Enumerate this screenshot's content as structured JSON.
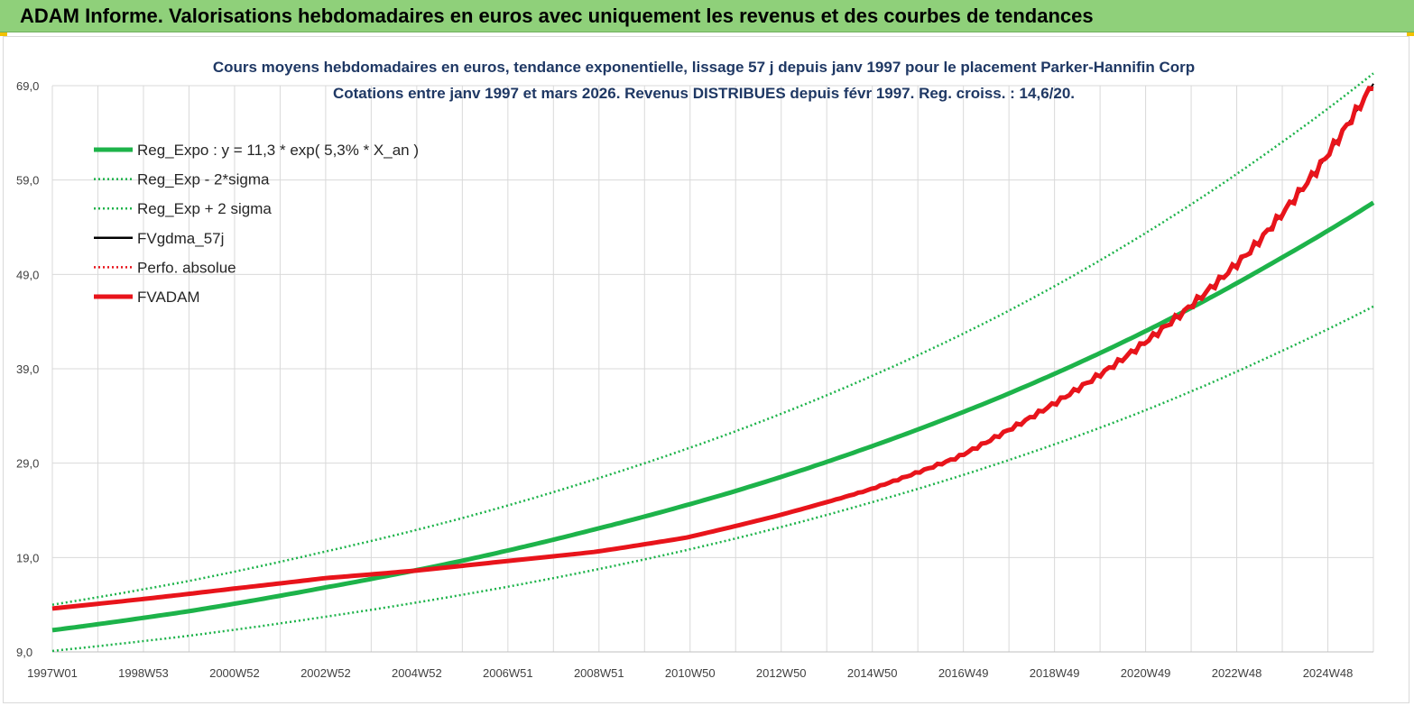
{
  "header": {
    "title": "ADAM Informe. Valorisations hebdomadaires en euros avec uniquement les revenus et des courbes de tendances"
  },
  "colors": {
    "green": "#1db34a",
    "black": "#000000",
    "red": "#e8141b",
    "grid": "#d9d9d9",
    "title": "#1f3864"
  },
  "chart_data": {
    "type": "line",
    "title": "Cours moyens hebdomadaires en euros, tendance exponentielle, lissage 57 j depuis janv 1997 pour le  placement Parker-Hannifin Corp",
    "subtitle": "Cotations entre janv 1997 et mars 2026. Revenus  DISTRIBUES depuis févr 1997. Reg.  croiss. : 14,6/20.",
    "xlabel": "",
    "ylabel": "",
    "x_ticks": [
      "1997W01",
      "1998W53",
      "2000W52",
      "2002W52",
      "2004W52",
      "2006W51",
      "2008W51",
      "2010W50",
      "2012W50",
      "2014W50",
      "2016W49",
      "2018W49",
      "2020W49",
      "2022W48",
      "2024W48"
    ],
    "xlim": [
      1997.0,
      2026.2
    ],
    "y_ticks": [
      "9,0",
      "19,0",
      "29,0",
      "39,0",
      "49,0",
      "59,0",
      "69,0"
    ],
    "ylim": [
      9,
      69
    ],
    "grid": true,
    "legend_position": "top-left",
    "series": [
      {
        "name": "Reg_Expo : y = 11,3 * exp( 5,3% *  X_an )",
        "style": "solid-thick",
        "color": "#1db34a",
        "x": [
          1997,
          2000,
          2003,
          2006,
          2009,
          2012,
          2015,
          2018,
          2021,
          2024,
          2026.2
        ],
        "values": [
          11.3,
          13.3,
          15.8,
          18.6,
          22.0,
          25.9,
          30.6,
          36.1,
          42.6,
          50.3,
          56.6
        ]
      },
      {
        "name": "Reg_Exp - 2*sigma",
        "style": "dotted",
        "color": "#1db34a",
        "x": [
          1997,
          2000,
          2003,
          2006,
          2009,
          2012,
          2015,
          2018,
          2021,
          2024,
          2026.2
        ],
        "values": [
          9.1,
          10.7,
          12.7,
          15.0,
          17.7,
          20.9,
          24.7,
          29.1,
          34.3,
          40.5,
          45.6
        ]
      },
      {
        "name": "Reg_Exp + 2 sigma",
        "style": "dotted",
        "color": "#1db34a",
        "x": [
          1997,
          2000,
          2003,
          2006,
          2009,
          2012,
          2015,
          2018,
          2021,
          2024,
          2026.2
        ],
        "values": [
          14.0,
          16.5,
          19.6,
          23.1,
          27.3,
          32.2,
          38.0,
          44.8,
          52.9,
          62.4,
          70.3
        ]
      },
      {
        "name": "FVgdma_57j",
        "style": "solid",
        "color": "#000000",
        "x": [
          1997,
          1999,
          2001,
          2003,
          2005,
          2007,
          2009,
          2011,
          2013,
          2015,
          2017,
          2019,
          2020.5,
          2022,
          2023.5,
          2025,
          2026.2
        ],
        "values": [
          13.6,
          14.6,
          15.7,
          16.8,
          17.6,
          18.6,
          19.6,
          21.1,
          23.4,
          26.1,
          29.6,
          34.9,
          39.5,
          45.0,
          51.6,
          60.4,
          69.2
        ]
      },
      {
        "name": "Perfo. absolue",
        "style": "dotted",
        "color": "#e8141b",
        "x": [
          1997,
          1999,
          2001,
          2003,
          2005,
          2007,
          2009,
          2011,
          2013,
          2015,
          2017,
          2019,
          2020.5,
          2022,
          2023.5,
          2025,
          2026.2
        ],
        "values": [
          13.6,
          14.6,
          15.7,
          16.8,
          17.6,
          18.6,
          19.6,
          21.1,
          23.4,
          26.1,
          29.6,
          34.9,
          39.5,
          45.0,
          51.6,
          60.4,
          69.2
        ]
      },
      {
        "name": "FVADAM",
        "style": "solid-thick-stepped",
        "color": "#e8141b",
        "x": [
          1997,
          1999,
          2001,
          2003,
          2005,
          2007,
          2009,
          2011,
          2013,
          2015,
          2017,
          2019,
          2020.5,
          2022,
          2023.5,
          2025,
          2026.2
        ],
        "values": [
          13.6,
          14.6,
          15.7,
          16.8,
          17.6,
          18.6,
          19.6,
          21.1,
          23.4,
          26.1,
          29.6,
          34.9,
          39.5,
          45.0,
          51.6,
          60.4,
          69.2
        ]
      }
    ]
  }
}
